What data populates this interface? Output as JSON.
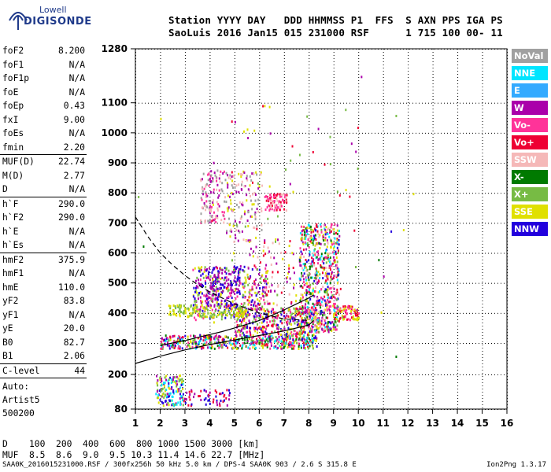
{
  "header": {
    "brand_top": "Lowell",
    "brand_bottom": "DIGISONDE",
    "line1": "Station YYYY DAY   DDD HHMMSS P1  FFS  S AXN PPS IGA PS",
    "line2": "SaoLuis 2016 Jan15 015 231000 RSF      1 715 100 00- 11"
  },
  "params_a": [
    {
      "name": "foF2",
      "value": "8.200"
    },
    {
      "name": "foF1",
      "value": "N/A"
    },
    {
      "name": "foF1p",
      "value": "N/A"
    },
    {
      "name": "foE",
      "value": "N/A"
    },
    {
      "name": "foEp",
      "value": "0.43"
    },
    {
      "name": "fxI",
      "value": "9.00"
    },
    {
      "name": "foEs",
      "value": "N/A"
    },
    {
      "name": "fmin",
      "value": "2.20"
    }
  ],
  "params_b": [
    {
      "name": "MUF(D)",
      "value": "22.74"
    },
    {
      "name": "M(D)",
      "value": "2.77"
    },
    {
      "name": "D",
      "value": "N/A"
    }
  ],
  "params_c": [
    {
      "name": "h`F",
      "value": "290.0"
    },
    {
      "name": "h`F2",
      "value": "290.0"
    },
    {
      "name": "h`E",
      "value": "N/A"
    },
    {
      "name": "h`Es",
      "value": "N/A"
    }
  ],
  "params_d": [
    {
      "name": "hmF2",
      "value": "375.9"
    },
    {
      "name": "hmF1",
      "value": "N/A"
    },
    {
      "name": "hmE",
      "value": "110.0"
    },
    {
      "name": "yF2",
      "value": "83.8"
    },
    {
      "name": "yF1",
      "value": "N/A"
    },
    {
      "name": "yE",
      "value": "20.0"
    },
    {
      "name": "B0",
      "value": "82.7"
    },
    {
      "name": "B1",
      "value": "2.06"
    }
  ],
  "clevel": {
    "name": "C-level",
    "value": "44"
  },
  "auto": {
    "line1": "Auto:",
    "line2": "Artist5",
    "line3": "500200"
  },
  "legend": [
    {
      "label": "NoVal",
      "color": "#a0a0a0"
    },
    {
      "label": "NNE",
      "color": "#00e5ff"
    },
    {
      "label": "E",
      "color": "#33aaff"
    },
    {
      "label": "W",
      "color": "#aa00aa"
    },
    {
      "label": "Vo-",
      "color": "#ff3399"
    },
    {
      "label": "Vo+",
      "color": "#ee0033"
    },
    {
      "label": "SSW",
      "color": "#f5b8b8"
    },
    {
      "label": "X-",
      "color": "#007a00"
    },
    {
      "label": "X+",
      "color": "#77bb44"
    },
    {
      "label": "SSE",
      "color": "#e0e000"
    },
    {
      "label": "NNW",
      "color": "#2200dd"
    }
  ],
  "bottom": {
    "row1": "D    100  200  400  600  800 1000 1500 3000 [km]",
    "row2": "MUF  8.5  8.6  9.0  9.5 10.3 11.4 14.6 22.7 [MHz]",
    "footer": "SAA0K_2016015231000.RSF / 300fx256h 50 kHz 5.0 km / DPS-4 SAA0K 903 / 2.6 S 315.8 E",
    "version": "Ion2Png 1.3.17"
  },
  "chart_data": {
    "type": "scatter",
    "x_ticks": [
      "1",
      "2",
      "3",
      "4",
      "5",
      "6",
      "7",
      "8",
      "9",
      "10",
      "11",
      "12",
      "13",
      "14",
      "15",
      "16"
    ],
    "y_ticks": [
      "80",
      "200",
      "300",
      "400",
      "500",
      "600",
      "700",
      "800",
      "900",
      "1000",
      "1100",
      "1280"
    ],
    "xlim": [
      1,
      16
    ],
    "ylim": [
      80,
      1280
    ],
    "grid": true,
    "traces": [
      {
        "name": "virtual-height-trace",
        "x": [
          2.0,
          2.5,
          3.0,
          3.5,
          4.0,
          4.5,
          5.0,
          5.5,
          6.0,
          6.5,
          7.0,
          7.5,
          8.0,
          8.2
        ],
        "y": [
          292,
          300,
          308,
          318,
          328,
          338,
          350,
          362,
          375,
          392,
          410,
          430,
          450,
          460
        ]
      },
      {
        "name": "profile-lower",
        "x": [
          1.0,
          2.0,
          3.0,
          4.0,
          5.0,
          6.0,
          7.0,
          8.0,
          8.2
        ],
        "y": [
          235,
          258,
          278,
          295,
          310,
          325,
          340,
          360,
          375
        ]
      },
      {
        "name": "profile-upper",
        "x": [
          1.0,
          1.5,
          2.0,
          2.5,
          3.0,
          3.5,
          4.0,
          5.0,
          6.0,
          7.0,
          8.0
        ],
        "y": [
          720,
          655,
          600,
          560,
          525,
          495,
          470,
          430,
          400,
          380,
          375
        ]
      }
    ],
    "clusters": [
      {
        "xr": [
          2.0,
          8.3
        ],
        "yr": [
          285,
          330
        ],
        "n": 500,
        "colors": [
          "#ee0033",
          "#ff3399",
          "#aa00aa",
          "#77bb44",
          "#007a00",
          "#e0e000",
          "#2200dd",
          "#00e5ff"
        ]
      },
      {
        "xr": [
          5.0,
          8.4
        ],
        "yr": [
          330,
          420
        ],
        "n": 350,
        "colors": [
          "#ee0033",
          "#ff3399",
          "#aa00aa",
          "#77bb44",
          "#e0e000",
          "#2200dd"
        ]
      },
      {
        "xr": [
          7.6,
          9.2
        ],
        "yr": [
          340,
          700
        ],
        "n": 650,
        "colors": [
          "#ee0033",
          "#ff3399",
          "#aa00aa",
          "#007a00",
          "#77bb44",
          "#e0e000",
          "#2200dd",
          "#00e5ff",
          "#f5b8b8"
        ]
      },
      {
        "xr": [
          9.0,
          10.0
        ],
        "yr": [
          380,
          430
        ],
        "n": 80,
        "colors": [
          "#ee0033",
          "#ff3399",
          "#e0e000"
        ]
      },
      {
        "xr": [
          3.3,
          6.3
        ],
        "yr": [
          380,
          560
        ],
        "n": 360,
        "colors": [
          "#aa00aa",
          "#2200dd",
          "#e0e000",
          "#ff3399",
          "#77bb44"
        ]
      },
      {
        "xr": [
          2.3,
          5.5
        ],
        "yr": [
          390,
          430
        ],
        "n": 160,
        "colors": [
          "#e0e000",
          "#77bb44"
        ]
      },
      {
        "xr": [
          3.8,
          5.2
        ],
        "yr": [
          420,
          560
        ],
        "n": 120,
        "colors": [
          "#aa00aa",
          "#2200dd"
        ]
      },
      {
        "xr": [
          3.6,
          4.6
        ],
        "yr": [
          700,
          880
        ],
        "n": 120,
        "colors": [
          "#aa00aa",
          "#f5b8b8",
          "#a0a0a0",
          "#ff3399"
        ]
      },
      {
        "xr": [
          4.6,
          6.1
        ],
        "yr": [
          640,
          880
        ],
        "n": 130,
        "colors": [
          "#e0e000",
          "#f5b8b8",
          "#a0a0a0",
          "#aa00aa"
        ]
      },
      {
        "xr": [
          6.2,
          7.1
        ],
        "yr": [
          745,
          800
        ],
        "n": 80,
        "colors": [
          "#f5b8b8",
          "#ee0033",
          "#ff3399"
        ]
      },
      {
        "xr": [
          1.8,
          2.9
        ],
        "yr": [
          95,
          200
        ],
        "n": 140,
        "colors": [
          "#2200dd",
          "#aa00aa",
          "#00e5ff",
          "#e0e000",
          "#77bb44"
        ]
      },
      {
        "xr": [
          2.9,
          4.8
        ],
        "yr": [
          95,
          150
        ],
        "n": 60,
        "colors": [
          "#aa00aa",
          "#2200dd",
          "#ee0033"
        ]
      },
      {
        "xr": [
          5.5,
          7.5
        ],
        "yr": [
          430,
          650
        ],
        "n": 90,
        "colors": [
          "#aa00aa",
          "#e0e000",
          "#ee0033",
          "#f5b8b8"
        ]
      },
      {
        "xr": [
          4.0,
          10.0
        ],
        "yr": [
          320,
          1100
        ],
        "n": 90,
        "colors": [
          "#ee0033",
          "#77bb44",
          "#e0e000",
          "#aa00aa"
        ]
      }
    ],
    "stray_points": [
      {
        "x": 1.3,
        "y": 625,
        "color": "#007a00"
      },
      {
        "x": 1.1,
        "y": 790,
        "color": "#77bb44"
      },
      {
        "x": 10.1,
        "y": 1190,
        "color": "#aa00aa"
      },
      {
        "x": 11.5,
        "y": 1060,
        "color": "#77bb44"
      },
      {
        "x": 10.8,
        "y": 580,
        "color": "#007a00"
      },
      {
        "x": 11.0,
        "y": 525,
        "color": "#aa00aa"
      },
      {
        "x": 11.3,
        "y": 675,
        "color": "#2200dd"
      },
      {
        "x": 11.8,
        "y": 680,
        "color": "#e0e000"
      },
      {
        "x": 11.5,
        "y": 260,
        "color": "#007a00"
      },
      {
        "x": 12.2,
        "y": 800,
        "color": "#e0e000"
      },
      {
        "x": 2.0,
        "y": 1050,
        "color": "#e0e000"
      },
      {
        "x": 10.9,
        "y": 405,
        "color": "#e0e000"
      }
    ]
  }
}
